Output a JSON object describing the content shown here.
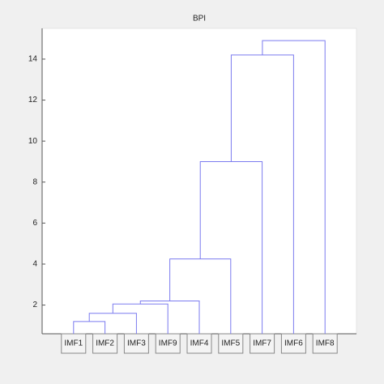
{
  "chart_data": {
    "type": "dendrogram",
    "title": "BPI",
    "leaves": [
      "IMF1",
      "IMF2",
      "IMF3",
      "IMF9",
      "IMF4",
      "IMF5",
      "IMF7",
      "IMF6",
      "IMF8"
    ],
    "heights": [
      1.2,
      1.6,
      2.05,
      2.2,
      4.25,
      9.0,
      14.2,
      14.9
    ],
    "color": "#7b7bef",
    "ylim": [
      0.6,
      15.5
    ],
    "yticks": [
      2,
      4,
      6,
      8,
      10,
      12,
      14
    ]
  }
}
